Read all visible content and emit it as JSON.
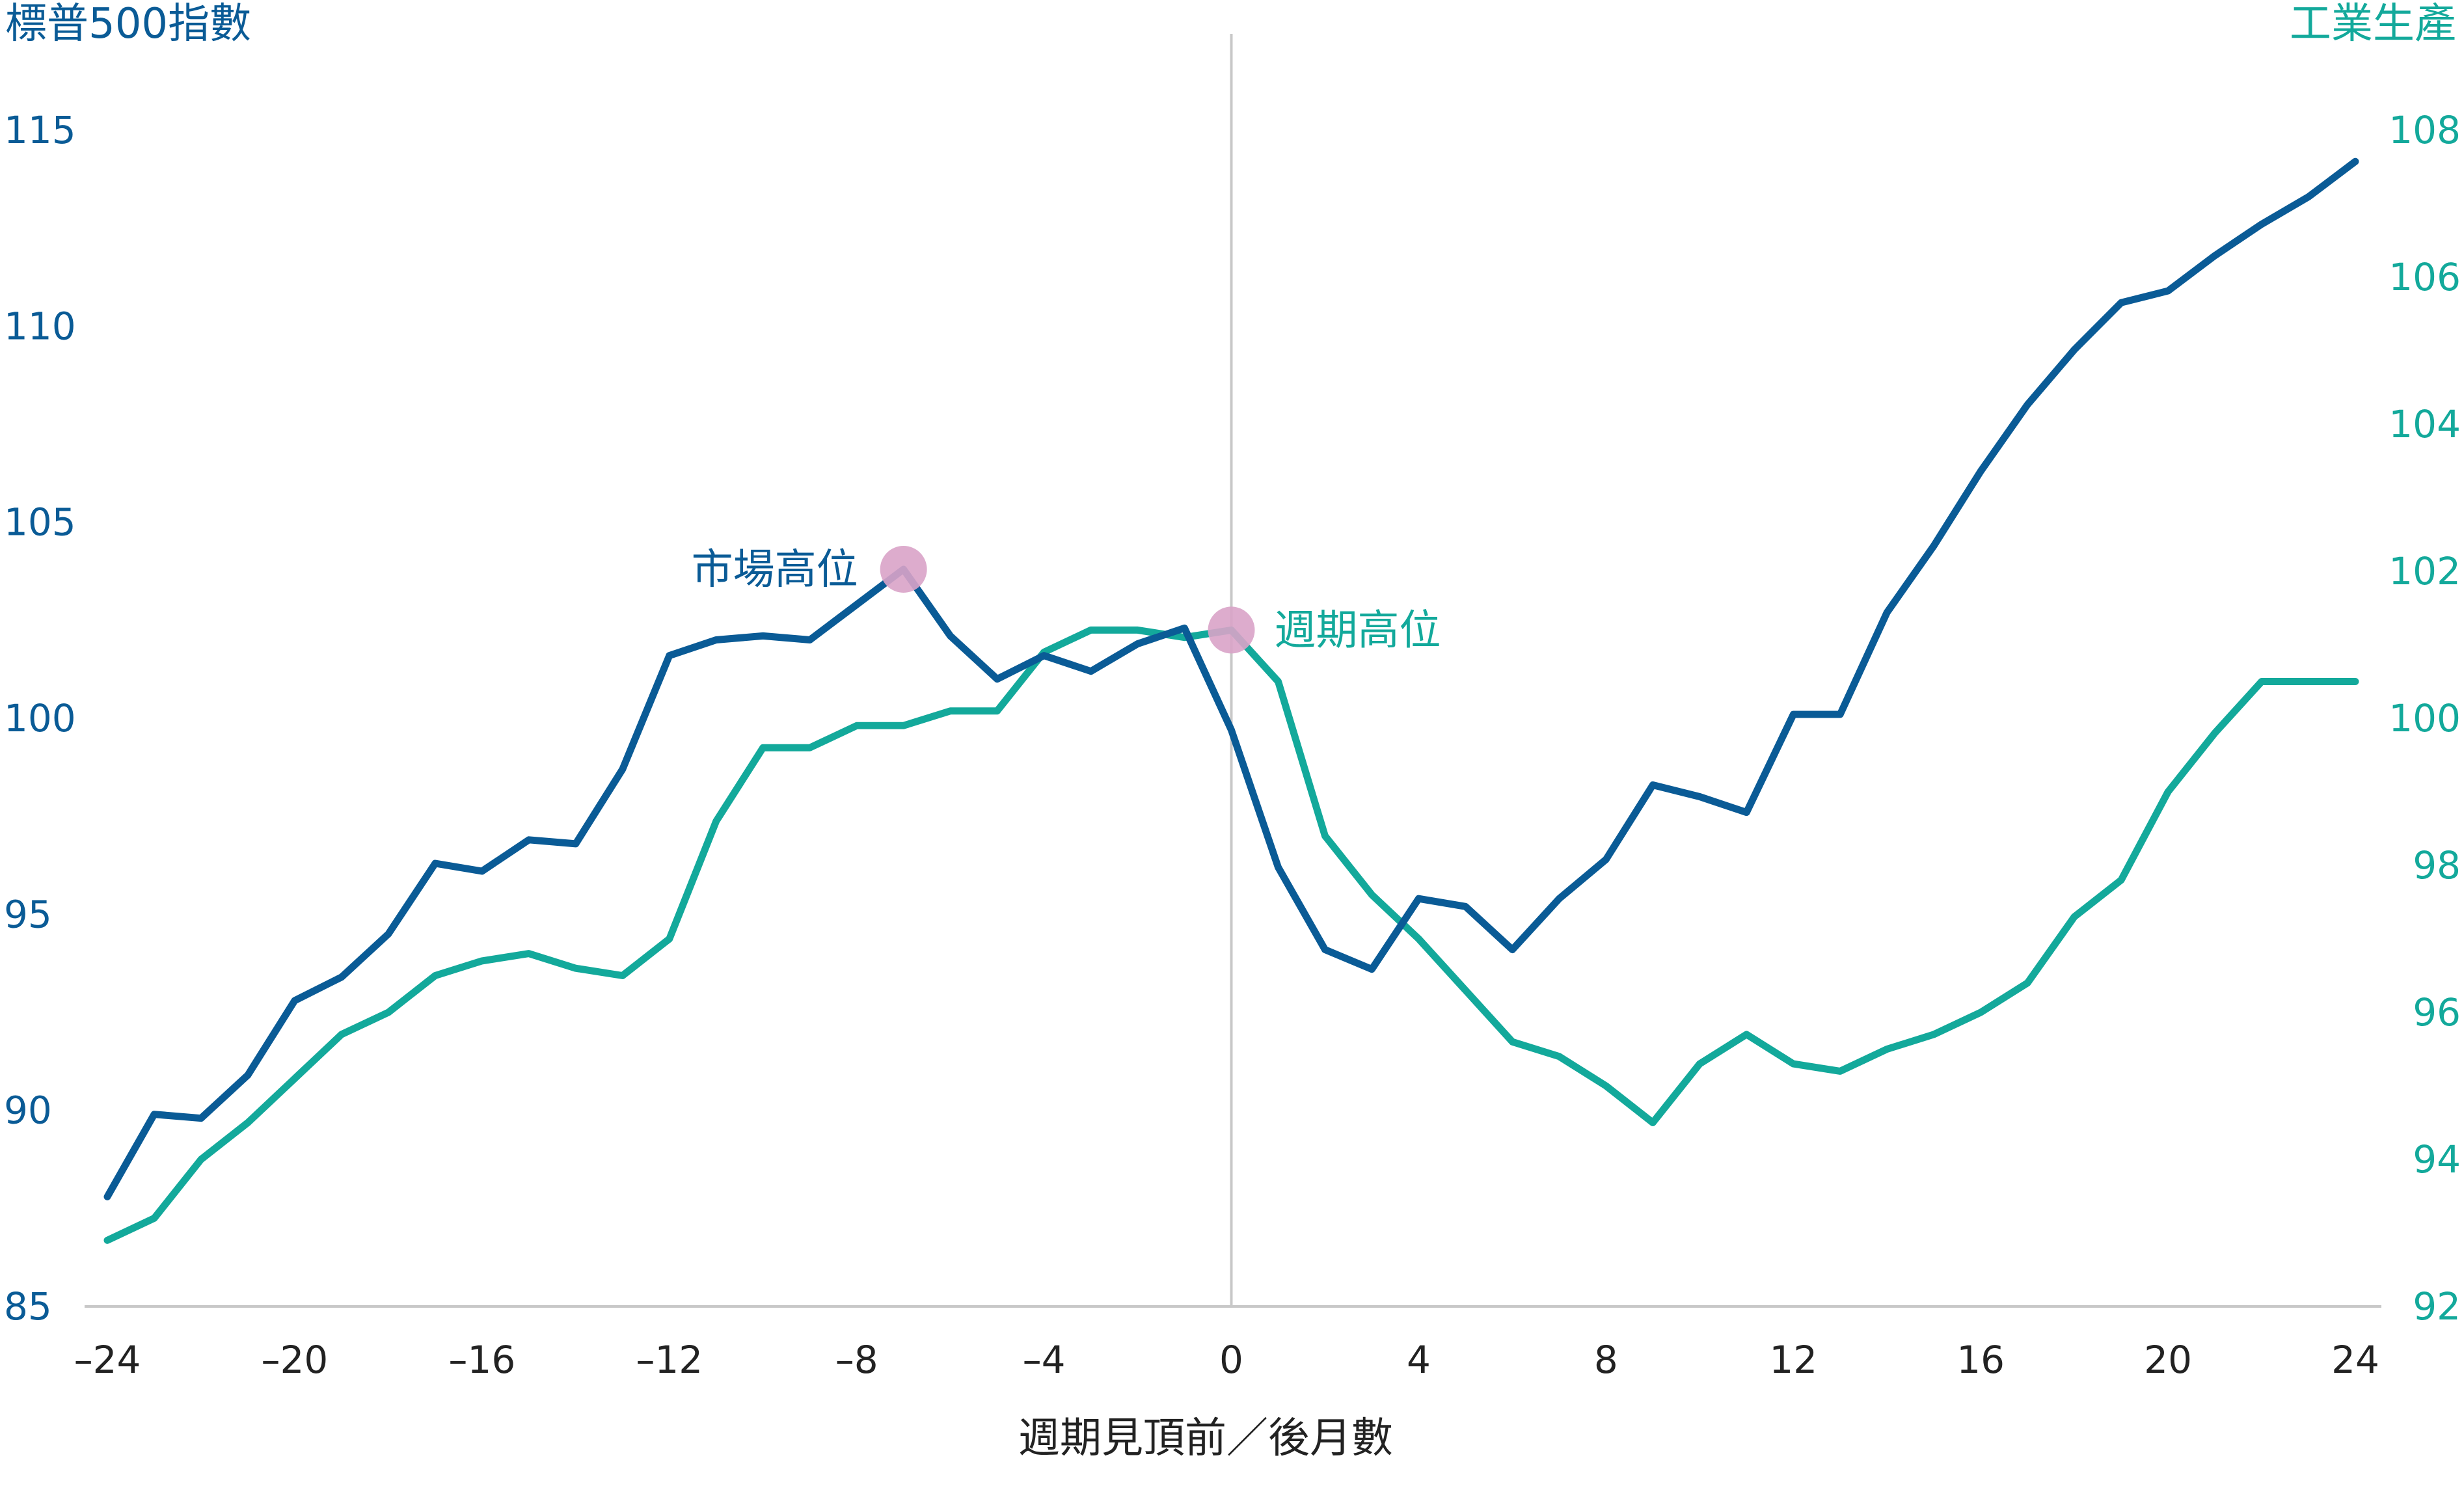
{
  "chart_data": {
    "type": "line",
    "y_left": {
      "label": "標普500指數",
      "range": [
        85,
        115
      ],
      "ticks": [
        85,
        90,
        95,
        100,
        105,
        110,
        115
      ]
    },
    "y_right": {
      "label": "工業生產",
      "range": [
        92,
        108
      ],
      "ticks": [
        92,
        94,
        96,
        98,
        100,
        102,
        104,
        106,
        108
      ]
    },
    "x_axis": {
      "label": "週期見頂前／後月數",
      "range": [
        -24,
        24
      ],
      "ticks": [
        "–24",
        "–20",
        "–16",
        "–12",
        "–8",
        "–4",
        "0",
        "4",
        "8",
        "12",
        "16",
        "20",
        "24"
      ],
      "tick_values": [
        -24,
        -20,
        -16,
        -12,
        -8,
        -4,
        0,
        4,
        8,
        12,
        16,
        20,
        24
      ]
    },
    "series": [
      {
        "name": "標普500指數",
        "axis": "left",
        "color": "#0a5b96",
        "x": [
          -24,
          -23,
          -22,
          -21,
          -20,
          -19,
          -18,
          -17,
          -16,
          -15,
          -14,
          -13,
          -12,
          -11,
          -10,
          -9,
          -8,
          -7,
          -6,
          -5,
          -4,
          -3,
          -2,
          -1,
          0,
          1,
          2,
          3,
          4,
          5,
          6,
          7,
          8,
          9,
          10,
          11,
          12,
          13,
          14,
          15,
          16,
          17,
          18,
          19,
          20,
          21,
          22,
          23,
          24
        ],
        "values": [
          87.8,
          89.9,
          89.8,
          90.9,
          92.8,
          93.4,
          94.5,
          96.3,
          96.1,
          96.9,
          96.8,
          98.7,
          101.6,
          102.0,
          102.1,
          102.0,
          102.9,
          103.8,
          102.1,
          101.0,
          101.6,
          101.2,
          101.9,
          102.3,
          99.7,
          96.2,
          94.1,
          93.6,
          95.4,
          95.2,
          94.1,
          95.4,
          96.4,
          98.3,
          98.0,
          97.6,
          100.1,
          100.1,
          102.7,
          104.4,
          106.3,
          108.0,
          109.4,
          110.6,
          110.9,
          111.8,
          112.6,
          113.3,
          114.2
        ]
      },
      {
        "name": "工業生產",
        "axis": "right",
        "color": "#13a99b",
        "x": [
          -24,
          -23,
          -22,
          -21,
          -20,
          -19,
          -18,
          -17,
          -16,
          -15,
          -14,
          -13,
          -12,
          -11,
          -10,
          -9,
          -8,
          -7,
          -6,
          -5,
          -4,
          -3,
          -2,
          -1,
          0,
          1,
          2,
          3,
          4,
          5,
          6,
          7,
          8,
          9,
          10,
          11,
          12,
          13,
          14,
          15,
          16,
          17,
          18,
          19,
          20,
          21,
          22,
          23,
          24
        ],
        "values": [
          92.9,
          93.2,
          94.0,
          94.5,
          95.1,
          95.7,
          96.0,
          96.5,
          96.7,
          96.8,
          96.6,
          96.5,
          97.0,
          98.6,
          99.6,
          99.6,
          99.9,
          99.9,
          100.1,
          100.1,
          100.9,
          101.2,
          101.2,
          101.1,
          101.2,
          100.5,
          98.4,
          97.6,
          97.0,
          96.3,
          95.6,
          95.4,
          95.0,
          94.5,
          95.3,
          95.7,
          95.3,
          95.2,
          95.5,
          95.7,
          96.0,
          96.4,
          97.3,
          97.8,
          99.0,
          99.8,
          100.5,
          100.5,
          100.5
        ]
      }
    ],
    "annotations": [
      {
        "text": "市場高位",
        "x": -7,
        "series": "標普500指數",
        "marker": "circle",
        "marker_color": "#d9a3c8"
      },
      {
        "text": "週期高位",
        "x": 0,
        "series": "工業生產",
        "marker": "circle",
        "marker_color": "#d9a3c8"
      }
    ],
    "reference_line": {
      "x": 0,
      "color": "#c8c8c8"
    },
    "grid": false,
    "legend": "none"
  }
}
